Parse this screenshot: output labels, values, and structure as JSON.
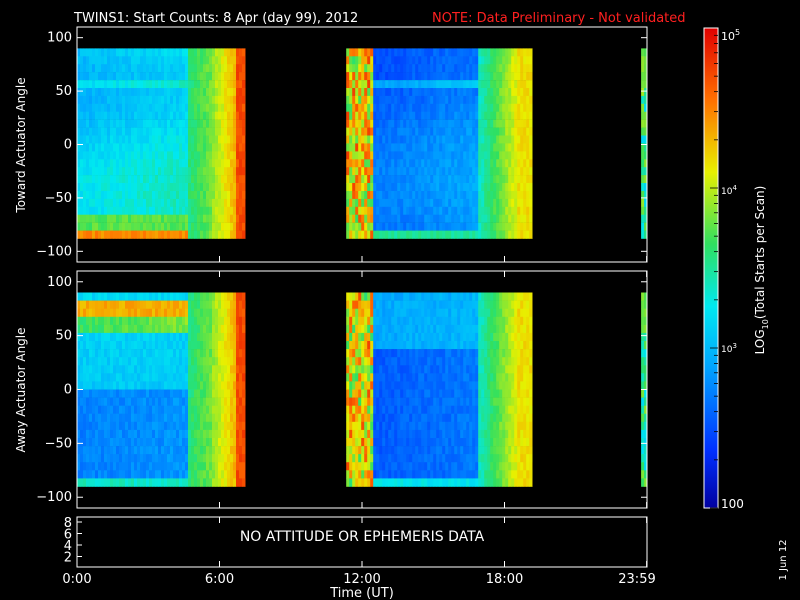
{
  "title": {
    "main": "TWINS1: Start Counts:  8 Apr (day  99), 2012",
    "note": "NOTE: Data Preliminary - Not validated",
    "note_color": "#ff2020"
  },
  "chart_data": [
    {
      "type": "heatmap",
      "panel": "top",
      "ylabel": "Toward Actuator Angle",
      "ylim": [
        -110,
        110
      ],
      "yticks": [
        100,
        50,
        0,
        -50,
        -100
      ],
      "xlim_hours": [
        0,
        24
      ],
      "data_rows_deg": [
        -88,
        90
      ],
      "segments": [
        {
          "start": "0:00",
          "end": "7:05"
        },
        {
          "start": "11:20",
          "end": "19:10"
        },
        {
          "start": "23:45",
          "end": "23:59"
        }
      ],
      "colorscale": "rainbow (blue→cyan→green→yellow→red)"
    },
    {
      "type": "heatmap",
      "panel": "middle",
      "ylabel": "Away Actuator Angle",
      "ylim": [
        -110,
        110
      ],
      "yticks": [
        100,
        50,
        0,
        -50,
        -100
      ],
      "xlim_hours": [
        0,
        24
      ],
      "data_rows_deg": [
        -90,
        90
      ],
      "segments": [
        {
          "start": "0:00",
          "end": "7:05"
        },
        {
          "start": "11:20",
          "end": "19:10"
        },
        {
          "start": "23:45",
          "end": "23:59"
        }
      ],
      "colorscale": "rainbow (blue→cyan→green→yellow→red)"
    }
  ],
  "bottom_panel": {
    "message": "NO ATTITUDE OR EPHEMERIS DATA",
    "yticks": [
      "8",
      "6",
      "4",
      "2"
    ]
  },
  "xaxis": {
    "ticks": [
      "0:00",
      "6:00",
      "12:00",
      "18:00",
      "23:59"
    ],
    "label": "Time (UT)"
  },
  "colorbar": {
    "label": "LOG10(Total Starts per Scan)",
    "label_main": "LOG",
    "label_sub": "10",
    "label_rest": "(Total Starts per Scan)",
    "top": "10^5",
    "top_base": "10",
    "top_exp": "5",
    "mid1": "10^4",
    "mid1_base": "10",
    "mid1_exp": "4",
    "mid2": "10^3",
    "mid2_base": "10",
    "mid2_exp": "3",
    "bottom": "100",
    "range": [
      100,
      100000
    ]
  },
  "date_stamp": "1 Jun 12"
}
